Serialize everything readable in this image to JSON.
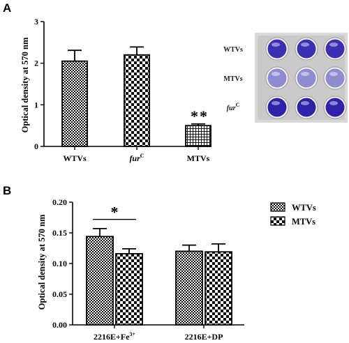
{
  "chart_data": [
    {
      "panel_label": "A",
      "type": "bar",
      "ylabel": "Optical density at 570 nm",
      "ylim": [
        0,
        3
      ],
      "yticks": [
        "0",
        "1",
        "2",
        "3"
      ],
      "categories": [
        "WTVs",
        "fur",
        "MTVs"
      ],
      "category_superscripts": [
        "",
        "C",
        ""
      ],
      "values": [
        2.05,
        2.2,
        0.5
      ],
      "errors": [
        0.26,
        0.19,
        0.04
      ],
      "patterns": [
        "checker-fine",
        "checker",
        "grid"
      ],
      "significance": [
        "",
        "",
        "**"
      ],
      "inset": {
        "rows": [
          "WTVs",
          "MTVs",
          "fur"
        ],
        "row_superscripts": [
          "",
          "",
          "C"
        ],
        "row_well_colors": [
          "#3b2fb3",
          "#8f8bd0",
          "#2e22a8"
        ]
      }
    },
    {
      "panel_label": "B",
      "type": "bar",
      "ylabel": "Optical density at 570 nm",
      "ylim": [
        0,
        0.2
      ],
      "yticks": [
        "0.00",
        "0.05",
        "0.10",
        "0.15",
        "0.20"
      ],
      "categories": [
        "2216E+Fe",
        "2216E+DP"
      ],
      "category_superscripts": [
        "3+",
        ""
      ],
      "series": [
        {
          "name": "WTVs",
          "values": [
            0.144,
            0.12
          ],
          "errors": [
            0.013,
            0.01
          ],
          "pattern": "checker-fine"
        },
        {
          "name": "MTVs",
          "values": [
            0.116,
            0.119
          ],
          "errors": [
            0.008,
            0.013
          ],
          "pattern": "checker"
        }
      ],
      "significance": [
        {
          "between": [
            0,
            1
          ],
          "category": 0,
          "label": "*"
        }
      ],
      "legend_position": "right"
    }
  ]
}
